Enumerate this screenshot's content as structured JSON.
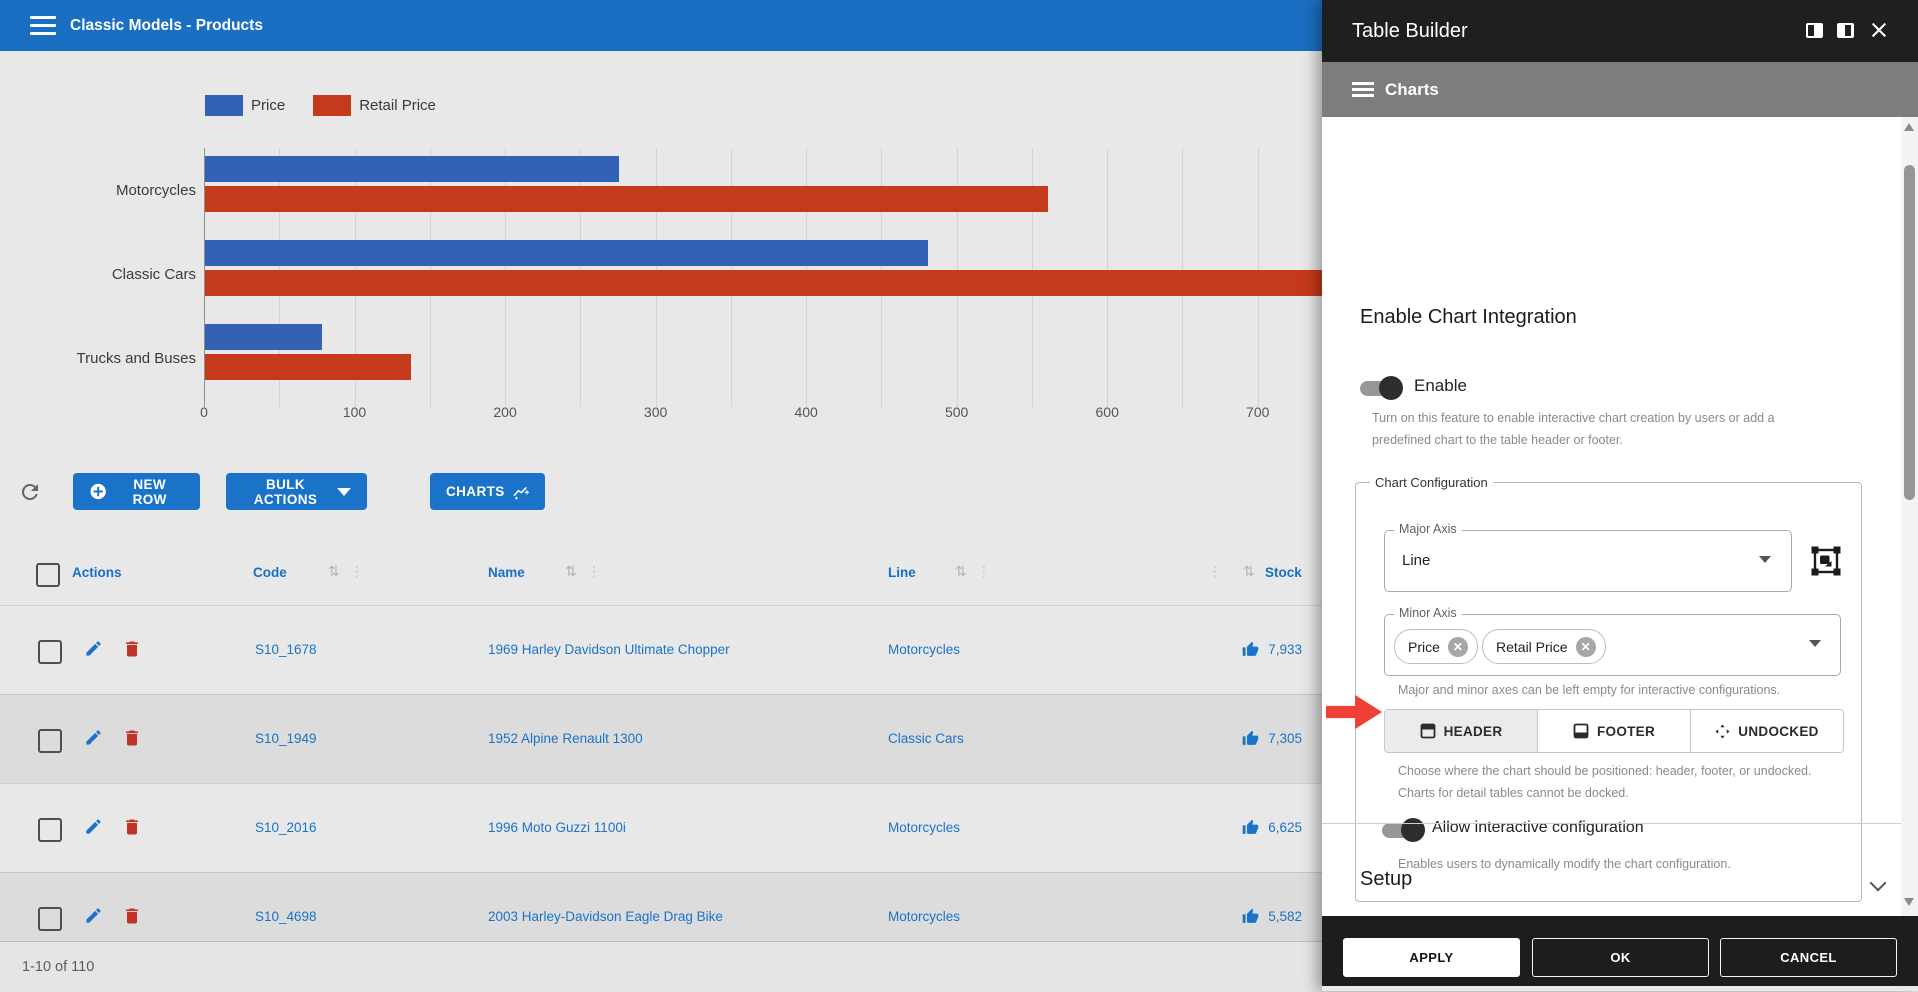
{
  "header": {
    "title": "Classic Models - Products"
  },
  "chart_data": {
    "type": "bar",
    "orientation": "horizontal",
    "title": "",
    "categories": [
      "Motorcycles",
      "Classic Cars",
      "Trucks and Buses"
    ],
    "series": [
      {
        "name": "Price",
        "color": "#3261b5",
        "values": [
          275,
          480,
          78
        ]
      },
      {
        "name": "Retail Price",
        "color": "#c53a1a",
        "values": [
          560,
          760,
          137
        ]
      }
    ],
    "note": "Classic Cars Retail Price bar extends beyond the visible plot area (clipped by the Table Builder panel)",
    "xlabel": "",
    "ylabel": "",
    "xlim": [
      0,
      750
    ],
    "xticks": [
      0,
      100,
      200,
      300,
      400,
      500,
      600,
      700
    ],
    "gridline_step": 50,
    "grid": true,
    "legend_position": "top"
  },
  "toolbar": {
    "refresh_icon": "refresh-icon",
    "new_row": "NEW ROW",
    "bulk_actions": "BULK ACTIONS",
    "charts": "CHARTS"
  },
  "table": {
    "columns": [
      {
        "key": "actions",
        "label": "Actions",
        "sortable": false
      },
      {
        "key": "code",
        "label": "Code",
        "sortable": true
      },
      {
        "key": "name",
        "label": "Name",
        "sortable": true
      },
      {
        "key": "line",
        "label": "Line",
        "sortable": true
      },
      {
        "key": "stock",
        "label": "Stock",
        "sortable": true
      }
    ],
    "rows": [
      {
        "code": "S10_1678",
        "name": "1969 Harley Davidson Ultimate Chopper",
        "line": "Motorcycles",
        "stock": "7,933"
      },
      {
        "code": "S10_1949",
        "name": "1952 Alpine Renault 1300",
        "line": "Classic Cars",
        "stock": "7,305"
      },
      {
        "code": "S10_2016",
        "name": "1996 Moto Guzzi 1100i",
        "line": "Motorcycles",
        "stock": "6,625"
      },
      {
        "code": "S10_4698",
        "name": "2003 Harley-Davidson Eagle Drag Bike",
        "line": "Motorcycles",
        "stock": "5,582"
      }
    ],
    "pagination": "1-10 of 110"
  },
  "panel": {
    "title": "Table Builder",
    "window_icons": [
      "dock-left-icon",
      "dock-right-icon",
      "close-icon"
    ],
    "section_label": "Charts",
    "enable_heading": "Enable Chart Integration",
    "enable_toggle_label": "Enable",
    "enable_toggle_on": true,
    "enable_help": "Turn on this feature to enable interactive chart creation by users or add a predefined chart to the table header or footer.",
    "config_legend": "Chart Configuration",
    "major_axis": {
      "label": "Major Axis",
      "value": "Line"
    },
    "minor_axis": {
      "label": "Minor Axis",
      "chips": [
        "Price",
        "Retail Price"
      ]
    },
    "axes_help": "Major and minor axes can be left empty for interactive configurations.",
    "position_options": [
      {
        "label": "HEADER",
        "icon": "header-icon",
        "selected": true
      },
      {
        "label": "FOOTER",
        "icon": "footer-icon",
        "selected": false
      },
      {
        "label": "UNDOCKED",
        "icon": "undocked-icon",
        "selected": false
      }
    ],
    "position_help_line1": "Choose where the chart should be positioned: header, footer, or undocked.",
    "position_help_line2": "Charts for detail tables cannot be docked.",
    "interactive_toggle_label": "Allow interactive configuration",
    "interactive_toggle_on": true,
    "interactive_help": "Enables users to dynamically modify the chart configuration.",
    "setup_label": "Setup",
    "footer": {
      "apply": "APPLY",
      "ok": "OK",
      "cancel": "CANCEL"
    }
  },
  "colors": {
    "app_header_blue": "#1a6fc2",
    "button_blue": "#1a73c8",
    "link_blue": "#1a73c8",
    "chart_blue": "#3261b5",
    "chart_red": "#c53a1a",
    "danger_red": "#c13326",
    "annotation_arrow_red": "#ee4035",
    "page_background": "#e8e8e8",
    "alt_row_gray": "#dcdcdc",
    "panel_header_dark": "#1f1f1f",
    "panel_section_gray": "#7d7d7d"
  }
}
